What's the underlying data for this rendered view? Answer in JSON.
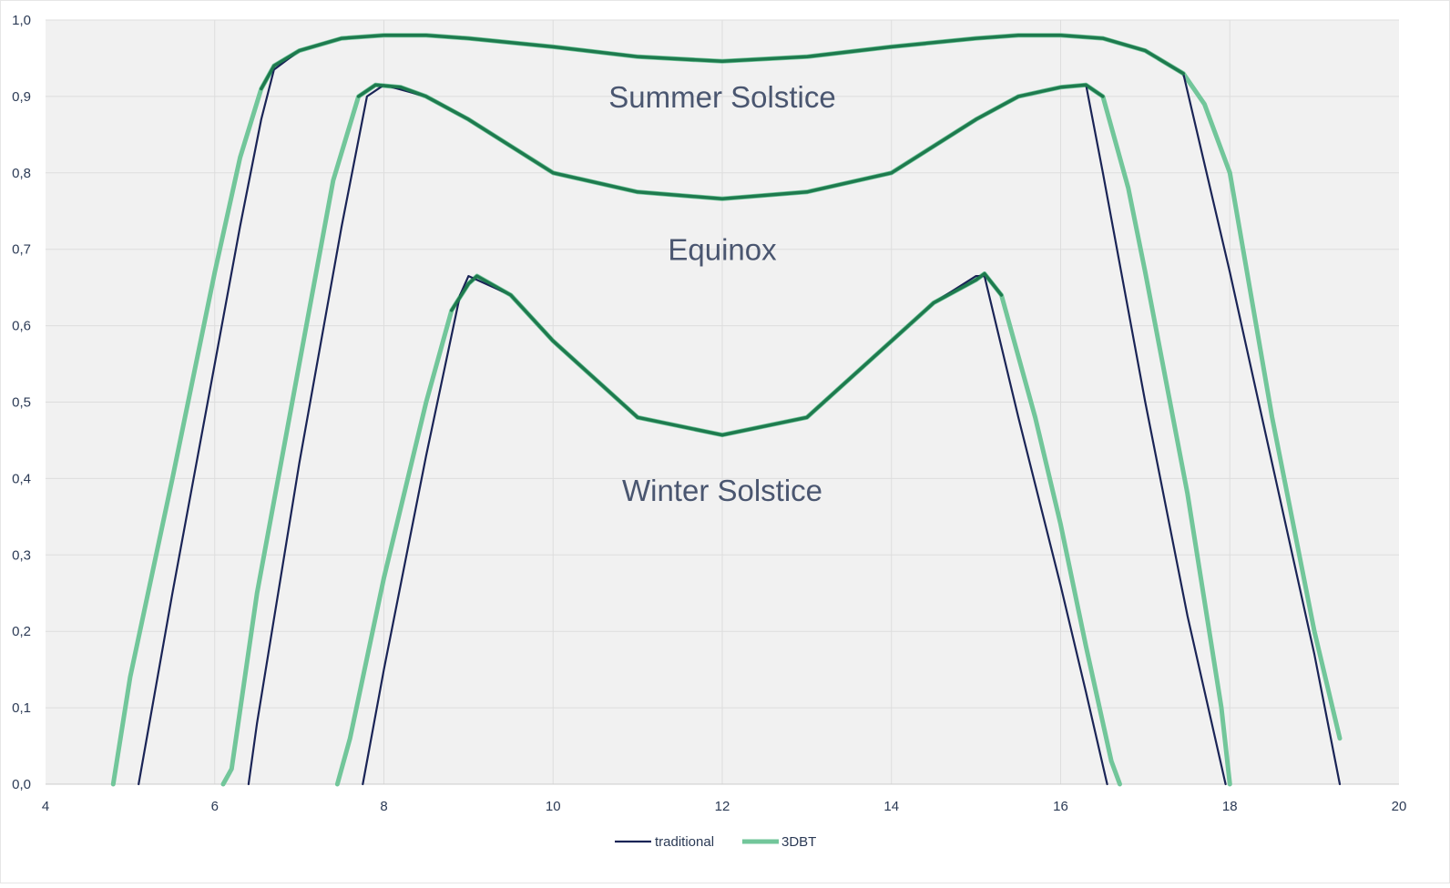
{
  "chart_data": {
    "type": "line",
    "title": "",
    "xlabel": "",
    "ylabel": "",
    "xlim": [
      4,
      20
    ],
    "ylim": [
      0,
      1
    ],
    "grid": true,
    "x_ticks": [
      4,
      6,
      8,
      10,
      12,
      14,
      16,
      18,
      20
    ],
    "x_tick_labels": [
      "4",
      "6",
      "8",
      "10",
      "12",
      "14",
      "16",
      "18",
      "20"
    ],
    "y_ticks": [
      0,
      0.1,
      0.2,
      0.3,
      0.4,
      0.5,
      0.6,
      0.7,
      0.8,
      0.9,
      1.0
    ],
    "y_tick_labels": [
      "0,0",
      "0,1",
      "0,2",
      "0,3",
      "0,4",
      "0,5",
      "0,6",
      "0,7",
      "0,8",
      "0,9",
      "1,0"
    ],
    "legend": {
      "position": "bottom-center",
      "entries": [
        {
          "name": "traditional",
          "color": "#1a2456"
        },
        {
          "name": "3DBT",
          "color": "#72c69a"
        }
      ]
    },
    "annotations": [
      {
        "text": "Summer Solstice",
        "x": 12,
        "y": 0.9
      },
      {
        "text": "Equinox",
        "x": 12,
        "y": 0.7
      },
      {
        "text": "Winter Solstice",
        "x": 12,
        "y": 0.385
      }
    ],
    "colors": {
      "traditional": "#1a2456",
      "3DBT": "#72c69a",
      "overlap": "#1e7a4e",
      "plot_background": "#f1f1f1",
      "grid": "#dddddd"
    },
    "series": [
      {
        "name": "3DBT",
        "group": "Summer Solstice",
        "x": [
          4.8,
          5.0,
          5.5,
          6.0,
          6.3,
          6.55,
          6.7,
          7.0,
          7.5,
          8.0,
          8.5,
          9.0,
          10.0,
          11.0,
          12.0,
          13.0,
          14.0,
          15.0,
          15.5,
          16.0,
          16.5,
          17.0,
          17.45,
          17.7,
          18.0,
          18.5,
          19.0,
          19.3
        ],
        "y": [
          0.0,
          0.14,
          0.4,
          0.67,
          0.82,
          0.91,
          0.94,
          0.96,
          0.976,
          0.98,
          0.98,
          0.976,
          0.965,
          0.952,
          0.946,
          0.952,
          0.965,
          0.976,
          0.98,
          0.98,
          0.976,
          0.96,
          0.93,
          0.89,
          0.8,
          0.48,
          0.2,
          0.06
        ]
      },
      {
        "name": "traditional",
        "group": "Summer Solstice",
        "x": [
          5.1,
          5.5,
          6.0,
          6.3,
          6.55,
          6.7,
          7.0,
          7.5,
          8.0,
          8.5,
          9.0,
          10.0,
          11.0,
          12.0,
          13.0,
          14.0,
          15.0,
          15.5,
          16.0,
          16.5,
          17.0,
          17.45,
          18.0,
          18.5,
          19.0,
          19.3
        ],
        "y": [
          0.0,
          0.25,
          0.55,
          0.73,
          0.87,
          0.935,
          0.96,
          0.976,
          0.98,
          0.98,
          0.976,
          0.965,
          0.952,
          0.946,
          0.952,
          0.965,
          0.976,
          0.98,
          0.98,
          0.976,
          0.96,
          0.93,
          0.67,
          0.42,
          0.17,
          0.0
        ]
      },
      {
        "name": "3DBT",
        "group": "Equinox",
        "x": [
          6.1,
          6.2,
          6.5,
          7.0,
          7.4,
          7.7,
          7.9,
          8.2,
          8.5,
          9.0,
          10.0,
          11.0,
          12.0,
          13.0,
          14.0,
          15.0,
          15.5,
          16.0,
          16.3,
          16.5,
          16.8,
          17.0,
          17.5,
          17.9,
          18.0
        ],
        "y": [
          0.0,
          0.02,
          0.25,
          0.55,
          0.79,
          0.9,
          0.915,
          0.912,
          0.9,
          0.87,
          0.8,
          0.775,
          0.766,
          0.775,
          0.8,
          0.87,
          0.9,
          0.912,
          0.915,
          0.9,
          0.78,
          0.67,
          0.38,
          0.1,
          0.0
        ]
      },
      {
        "name": "traditional",
        "group": "Equinox",
        "x": [
          6.4,
          6.5,
          7.0,
          7.5,
          7.8,
          8.0,
          8.5,
          9.0,
          10.0,
          11.0,
          12.0,
          13.0,
          14.0,
          15.0,
          15.5,
          16.0,
          16.3,
          16.5,
          17.0,
          17.5,
          17.95
        ],
        "y": [
          0.0,
          0.08,
          0.42,
          0.73,
          0.9,
          0.915,
          0.9,
          0.87,
          0.8,
          0.775,
          0.766,
          0.775,
          0.8,
          0.87,
          0.9,
          0.912,
          0.915,
          0.8,
          0.5,
          0.22,
          0.0
        ]
      },
      {
        "name": "3DBT",
        "group": "Winter Solstice",
        "x": [
          7.45,
          7.6,
          8.0,
          8.5,
          8.8,
          9.0,
          9.1,
          9.5,
          10.0,
          11.0,
          12.0,
          13.0,
          14.0,
          14.5,
          15.0,
          15.1,
          15.3,
          15.7,
          16.0,
          16.3,
          16.6,
          16.7
        ],
        "y": [
          0.0,
          0.06,
          0.27,
          0.5,
          0.62,
          0.655,
          0.665,
          0.64,
          0.58,
          0.48,
          0.457,
          0.48,
          0.58,
          0.63,
          0.66,
          0.668,
          0.64,
          0.48,
          0.34,
          0.18,
          0.03,
          0.0
        ]
      },
      {
        "name": "traditional",
        "group": "Winter Solstice",
        "x": [
          7.75,
          8.0,
          8.5,
          8.9,
          9.0,
          9.5,
          10.0,
          11.0,
          12.0,
          13.0,
          14.0,
          14.5,
          15.0,
          15.1,
          15.5,
          16.0,
          16.3,
          16.55
        ],
        "y": [
          0.0,
          0.15,
          0.43,
          0.64,
          0.665,
          0.64,
          0.58,
          0.48,
          0.457,
          0.48,
          0.58,
          0.63,
          0.665,
          0.665,
          0.48,
          0.26,
          0.12,
          0.0
        ]
      }
    ]
  }
}
